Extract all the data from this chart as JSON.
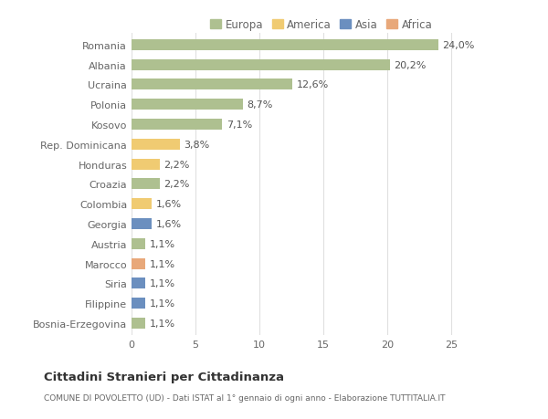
{
  "countries": [
    "Romania",
    "Albania",
    "Ucraina",
    "Polonia",
    "Kosovo",
    "Rep. Dominicana",
    "Honduras",
    "Croazia",
    "Colombia",
    "Georgia",
    "Austria",
    "Marocco",
    "Siria",
    "Filippine",
    "Bosnia-Erzegovina"
  ],
  "values": [
    24.0,
    20.2,
    12.6,
    8.7,
    7.1,
    3.8,
    2.2,
    2.2,
    1.6,
    1.6,
    1.1,
    1.1,
    1.1,
    1.1,
    1.1
  ],
  "labels": [
    "24,0%",
    "20,2%",
    "12,6%",
    "8,7%",
    "7,1%",
    "3,8%",
    "2,2%",
    "2,2%",
    "1,6%",
    "1,6%",
    "1,1%",
    "1,1%",
    "1,1%",
    "1,1%",
    "1,1%"
  ],
  "continents": [
    "Europa",
    "Europa",
    "Europa",
    "Europa",
    "Europa",
    "America",
    "America",
    "Europa",
    "America",
    "Asia",
    "Europa",
    "Africa",
    "Asia",
    "Asia",
    "Europa"
  ],
  "continent_colors": {
    "Europa": "#aec090",
    "America": "#f0cb72",
    "Asia": "#6b8fbf",
    "Africa": "#e8a87a"
  },
  "legend_order": [
    "Europa",
    "America",
    "Asia",
    "Africa"
  ],
  "legend_colors": {
    "Europa": "#aec090",
    "America": "#f0cb72",
    "Asia": "#6b8fbf",
    "Africa": "#e8a87a"
  },
  "title": "Cittadini Stranieri per Cittadinanza",
  "subtitle": "COMUNE DI POVOLETTO (UD) - Dati ISTAT al 1° gennaio di ogni anno - Elaborazione TUTTITALIA.IT",
  "xlim": [
    0,
    27
  ],
  "xticks": [
    0,
    5,
    10,
    15,
    20,
    25
  ],
  "background_color": "#ffffff",
  "grid_color": "#e0e0e0",
  "bar_height": 0.55,
  "text_color": "#666666",
  "label_color": "#555555",
  "label_fontsize": 8,
  "ytick_fontsize": 8,
  "xtick_fontsize": 8
}
